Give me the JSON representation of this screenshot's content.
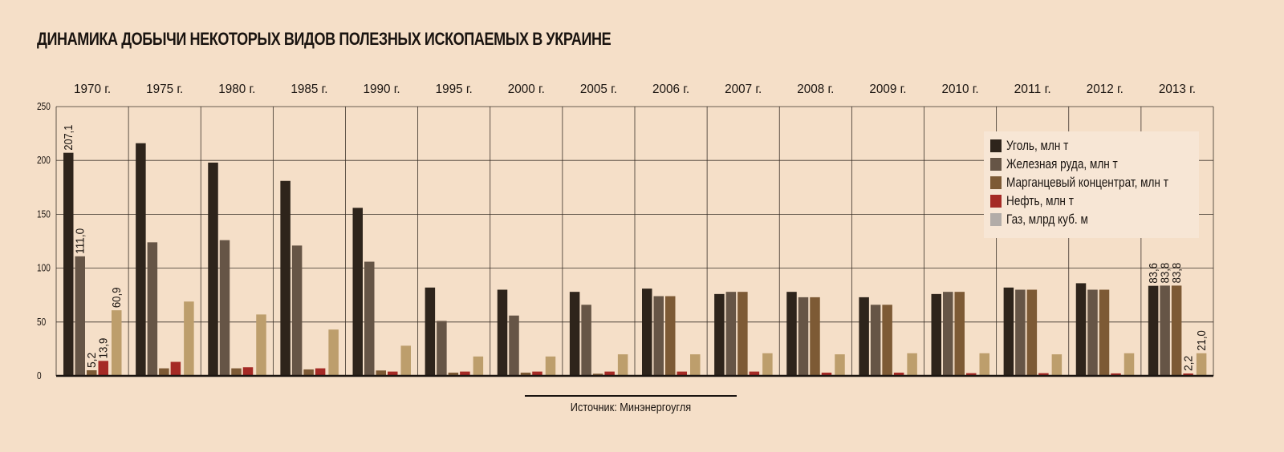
{
  "chart_data": {
    "type": "bar",
    "title": "ДИНАМИКА ДОБЫЧИ НЕКОТОРЫХ ВИДОВ ПОЛЕЗНЫХ ИСКОПАЕМЫХ В УКРАИНЕ",
    "categories": [
      "1970 г.",
      "1975 г.",
      "1980 г.",
      "1985 г.",
      "1990 г.",
      "1995 г.",
      "2000 г.",
      "2005 г.",
      "2006 г.",
      "2007 г.",
      "2008 г.",
      "2009 г.",
      "2010 г.",
      "2011 г.",
      "2012 г.",
      "2013 г."
    ],
    "ylim": [
      0,
      250
    ],
    "yticks": [
      0,
      50,
      100,
      150,
      200,
      250
    ],
    "grid": true,
    "legend_position": "top-right",
    "series": [
      {
        "name": "Уголь,  млн т",
        "color": "#2e241b",
        "values": [
          207.1,
          216,
          198,
          181,
          156,
          82,
          80,
          78,
          81,
          76,
          78,
          73,
          76,
          82,
          86,
          83.6
        ]
      },
      {
        "name": "Железная руда, млн т",
        "color": "#665546",
        "values": [
          111.0,
          124,
          126,
          121,
          106,
          51,
          56,
          66,
          74,
          78,
          73,
          66,
          78,
          80,
          80,
          83.8
        ]
      },
      {
        "name": "Марганцевый концентрат, млн т",
        "color": "#7d5a35",
        "values": [
          5.2,
          7,
          7,
          6,
          5,
          3,
          3,
          2,
          74,
          78,
          73,
          66,
          78,
          80,
          80,
          83.8
        ]
      },
      {
        "name": "Нефть, млн т",
        "color": "#a52a25",
        "values": [
          13.9,
          13,
          8,
          7,
          4,
          4,
          4,
          4,
          4,
          4,
          3,
          3,
          2.5,
          2.5,
          2.3,
          2.2
        ]
      },
      {
        "name": "Газ, млрд куб. м",
        "color": "#bd9e6c",
        "values": [
          60.9,
          69,
          57,
          43,
          28,
          18,
          18,
          20,
          20,
          21,
          20,
          21,
          21,
          20,
          21,
          21.0
        ]
      }
    ],
    "legend_swatch_colors": [
      "#2e241b",
      "#665546",
      "#7d5a35",
      "#a52a25",
      "#b2aca8"
    ],
    "data_labels": [
      {
        "category": 0,
        "series": 0,
        "text": "207,1"
      },
      {
        "category": 0,
        "series": 1,
        "text": "111,0"
      },
      {
        "category": 0,
        "series": 2,
        "text": "5,2"
      },
      {
        "category": 0,
        "series": 3,
        "text": "13,9"
      },
      {
        "category": 0,
        "series": 4,
        "text": "60,9"
      },
      {
        "category": 15,
        "series": 0,
        "text": "83,6"
      },
      {
        "category": 15,
        "series": 1,
        "text": "83,8"
      },
      {
        "category": 15,
        "series": 2,
        "text": "83,8"
      },
      {
        "category": 15,
        "series": 3,
        "text": "2,2"
      },
      {
        "category": 15,
        "series": 4,
        "text": "21,0"
      }
    ],
    "source": "Источник: Минэнергоугля"
  }
}
